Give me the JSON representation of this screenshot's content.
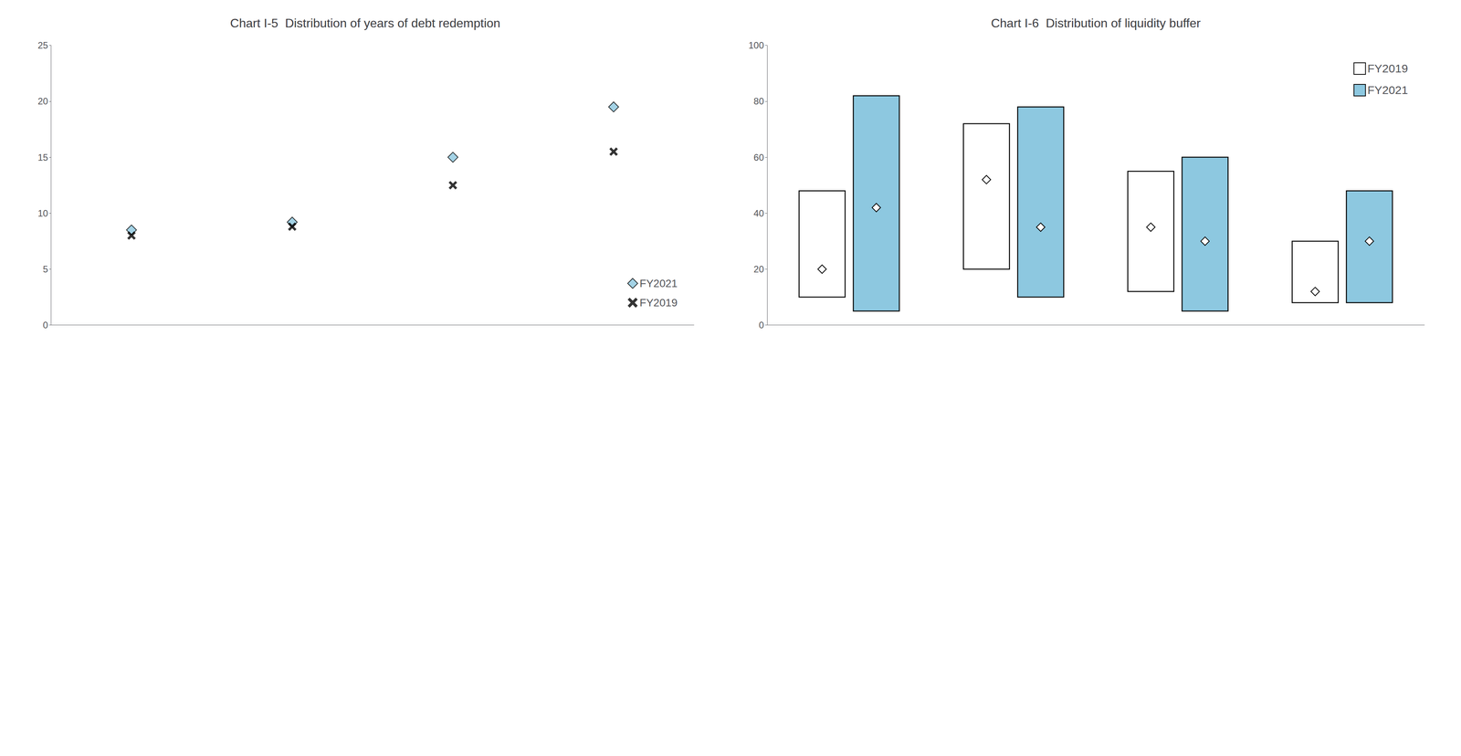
{
  "chart_data": [
    {
      "type": "scatter",
      "title": "Chart I-5  Distribution of years of debt redemption",
      "categories": [
        null,
        null,
        null,
        null
      ],
      "series": [
        {
          "name": "FY2021",
          "color": "#8dc8e0",
          "marker": "diamond",
          "values": [
            8.5,
            9.2,
            15.0,
            19.5
          ]
        },
        {
          "name": "FY2019",
          "color": "#000000",
          "marker": "x",
          "values": [
            8.0,
            8.8,
            12.5,
            15.5
          ]
        }
      ],
      "ylim": [
        0,
        25
      ],
      "yticks": [
        0,
        5,
        10,
        15,
        20,
        25
      ],
      "grid": false,
      "legend": "lower right",
      "tick_labels": "y"
    },
    {
      "type": "bar",
      "title": "Chart I-6  Distribution of liquidity buffer",
      "categories": [
        null,
        null,
        null,
        null
      ],
      "series": [
        {
          "name": "FY2019",
          "color": "#ffffff",
          "low": [
            10,
            20,
            12,
            8
          ],
          "high": [
            48,
            72,
            55,
            30
          ],
          "median": [
            20,
            52,
            35,
            12
          ]
        },
        {
          "name": "FY2021",
          "color": "#8dc8e0",
          "low": [
            5,
            10,
            5,
            8
          ],
          "high": [
            82,
            78,
            60,
            48
          ],
          "median": [
            42,
            35,
            30,
            30
          ]
        }
      ],
      "ylim": [
        0,
        100
      ],
      "yticks": [
        0,
        20,
        40,
        60,
        80,
        100
      ],
      "grid": false,
      "legend": "upper right",
      "tick_labels": "y"
    }
  ]
}
